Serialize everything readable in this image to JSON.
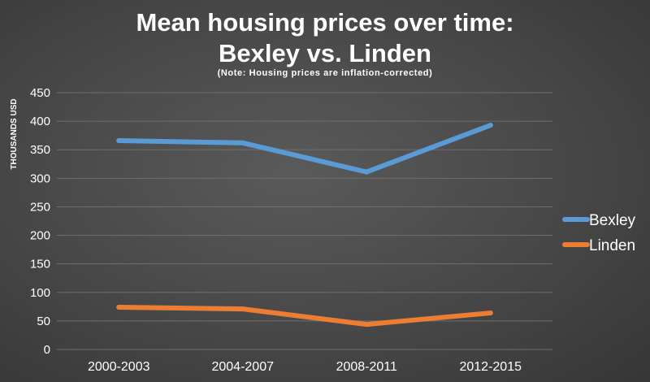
{
  "chart_data": {
    "type": "line",
    "title_line1": "Mean housing prices over time:",
    "title_line2": "Bexley vs. Linden",
    "subtitle": "(Note: Housing prices are inflation-corrected)",
    "ylabel": "THOUSANDS USD",
    "categories": [
      "2000-2003",
      "2004-2007",
      "2008-2011",
      "2012-2015"
    ],
    "ylim": [
      0,
      450
    ],
    "yticks": [
      "0",
      "50",
      "100",
      "150",
      "200",
      "250",
      "300",
      "350",
      "400",
      "450"
    ],
    "grid": true,
    "legend_position": "right",
    "series": [
      {
        "name": "Bexley",
        "values": [
          366,
          362,
          311,
          393
        ],
        "color": "#5b9bd5"
      },
      {
        "name": "Linden",
        "values": [
          74,
          71,
          44,
          64
        ],
        "color": "#ed7d31"
      }
    ]
  }
}
